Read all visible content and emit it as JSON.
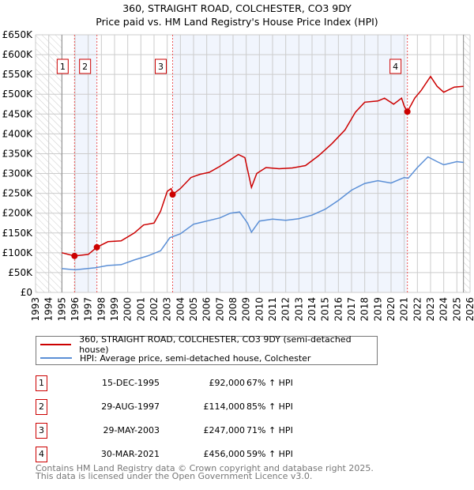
{
  "title_line1": "360, STRAIGHT ROAD, COLCHESTER, CO3 9DY",
  "title_line2": "Price paid vs. HM Land Registry's House Price Index (HPI)",
  "chart_data": {
    "type": "line",
    "xlim": [
      1993,
      2026
    ],
    "ylim": [
      0,
      650000
    ],
    "x_ticks": [
      1993,
      1994,
      1995,
      1996,
      1997,
      1998,
      1999,
      2000,
      2001,
      2002,
      2003,
      2004,
      2005,
      2006,
      2007,
      2008,
      2009,
      2010,
      2011,
      2012,
      2013,
      2014,
      2015,
      2016,
      2017,
      2018,
      2019,
      2020,
      2021,
      2022,
      2023,
      2024,
      2025,
      2026
    ],
    "y_ticks": [
      {
        "value": 0,
        "label": "£0"
      },
      {
        "value": 50000,
        "label": "£50K"
      },
      {
        "value": 100000,
        "label": "£100K"
      },
      {
        "value": 150000,
        "label": "£150K"
      },
      {
        "value": 200000,
        "label": "£200K"
      },
      {
        "value": 250000,
        "label": "£250K"
      },
      {
        "value": 300000,
        "label": "£300K"
      },
      {
        "value": 350000,
        "label": "£350K"
      },
      {
        "value": 400000,
        "label": "£400K"
      },
      {
        "value": 450000,
        "label": "£450K"
      },
      {
        "value": 500000,
        "label": "£500K"
      },
      {
        "value": 550000,
        "label": "£550K"
      },
      {
        "value": 600000,
        "label": "£600K"
      },
      {
        "value": 650000,
        "label": "£650K"
      }
    ],
    "grid": true,
    "hatched_ranges": [
      [
        1993,
        1995
      ],
      [
        2025.5,
        2026
      ]
    ],
    "series": [
      {
        "name": "360, STRAIGHT ROAD, COLCHESTER, CO3 9DY (semi-detached house)",
        "color": "#cc0000",
        "x": [
          1995.0,
          1995.96,
          1997.0,
          1997.66,
          1998.5,
          1999.5,
          2000.5,
          2001.2,
          2002.0,
          2002.5,
          2003.0,
          2003.3,
          2003.41,
          2004.0,
          2004.8,
          2005.5,
          2006.2,
          2007.0,
          2007.8,
          2008.4,
          2008.9,
          2009.1,
          2009.4,
          2009.8,
          2010.5,
          2011.5,
          2012.5,
          2013.5,
          2014.5,
          2015.5,
          2016.5,
          2017.3,
          2018.0,
          2019.0,
          2019.5,
          2020.2,
          2020.8,
          2021.0,
          2021.24,
          2021.8,
          2022.3,
          2023.0,
          2023.5,
          2024.0,
          2024.8,
          2025.5
        ],
        "y": [
          100000,
          92000,
          96000,
          114000,
          128000,
          130000,
          150000,
          170000,
          175000,
          205000,
          255000,
          262000,
          247000,
          262000,
          290000,
          298000,
          303000,
          318000,
          335000,
          348000,
          340000,
          310000,
          265000,
          300000,
          315000,
          312000,
          314000,
          320000,
          345000,
          375000,
          410000,
          455000,
          480000,
          483000,
          490000,
          475000,
          490000,
          470000,
          456000,
          490000,
          510000,
          545000,
          520000,
          505000,
          518000,
          520000
        ]
      },
      {
        "name": "HPI: Average price, semi-detached house, Colchester",
        "color": "#5b8fd6",
        "x": [
          1995.0,
          1996.0,
          1997.5,
          1998.5,
          1999.5,
          2000.5,
          2001.5,
          2002.5,
          2003.2,
          2004.0,
          2005.0,
          2006.0,
          2007.0,
          2007.8,
          2008.5,
          2009.1,
          2009.4,
          2010.0,
          2011.0,
          2012.0,
          2013.0,
          2014.0,
          2015.0,
          2016.0,
          2017.0,
          2018.0,
          2019.0,
          2020.0,
          2021.0,
          2021.3,
          2022.0,
          2022.8,
          2023.5,
          2024.0,
          2025.0,
          2025.5
        ],
        "y": [
          60000,
          57000,
          62000,
          68000,
          70000,
          82000,
          92000,
          105000,
          138000,
          148000,
          172000,
          180000,
          188000,
          200000,
          203000,
          175000,
          152000,
          180000,
          185000,
          182000,
          186000,
          195000,
          210000,
          232000,
          258000,
          275000,
          282000,
          276000,
          290000,
          288000,
          315000,
          342000,
          330000,
          322000,
          330000,
          328000
        ]
      }
    ],
    "sales": [
      {
        "id": "1",
        "date": "15-DEC-1995",
        "x": 1995.96,
        "price": 92000,
        "price_label": "£92,000",
        "hpi": "67% ↑ HPI"
      },
      {
        "id": "2",
        "date": "29-AUG-1997",
        "x": 1997.66,
        "price": 114000,
        "price_label": "£114,000",
        "hpi": "85% ↑ HPI"
      },
      {
        "id": "3",
        "date": "29-MAY-2003",
        "x": 2003.41,
        "price": 247000,
        "price_label": "£247,000",
        "hpi": "71% ↑ HPI"
      },
      {
        "id": "4",
        "date": "30-MAR-2021",
        "x": 2021.24,
        "price": 456000,
        "price_label": "£456,000",
        "hpi": "59% ↑ HPI"
      }
    ]
  },
  "legend": {
    "red_label": "360, STRAIGHT ROAD, COLCHESTER, CO3 9DY (semi-detached house)",
    "blue_label": "HPI: Average price, semi-detached house, Colchester"
  },
  "footer_line1": "Contains HM Land Registry data © Crown copyright and database right 2025.",
  "footer_line2": "This data is licensed under the Open Government Licence v3.0."
}
